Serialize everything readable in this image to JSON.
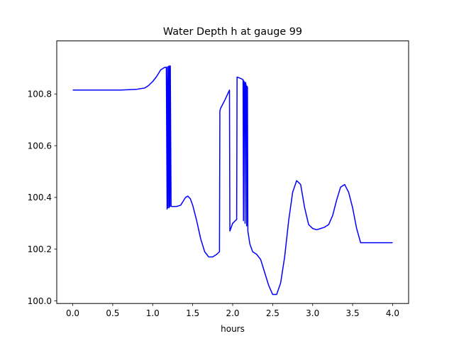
{
  "chart_data": {
    "type": "line",
    "title": "Water Depth h at gauge 99",
    "xlabel": "hours",
    "ylabel": "",
    "xlim": [
      -0.2,
      4.2
    ],
    "ylim": [
      99.99,
      101.005
    ],
    "xticks": [
      0.0,
      0.5,
      1.0,
      1.5,
      2.0,
      2.5,
      3.0,
      3.5,
      4.0
    ],
    "xtick_labels": [
      "0.0",
      "0.5",
      "1.0",
      "1.5",
      "2.0",
      "2.5",
      "3.0",
      "3.5",
      "4.0"
    ],
    "yticks": [
      100.0,
      100.2,
      100.4,
      100.6,
      100.8
    ],
    "ytick_labels": [
      "100.0",
      "100.2",
      "100.4",
      "100.6",
      "100.8"
    ],
    "grid": false,
    "color": "#0000ff",
    "series": [
      {
        "x": [
          0.0,
          0.2,
          0.4,
          0.6,
          0.8,
          0.9,
          0.95,
          1.0,
          1.05,
          1.1,
          1.15,
          1.17,
          1.18,
          1.185,
          1.19,
          1.2,
          1.205,
          1.21,
          1.215,
          1.22,
          1.23,
          1.3,
          1.35,
          1.38,
          1.41,
          1.44,
          1.47,
          1.5,
          1.55,
          1.6,
          1.65,
          1.7,
          1.75,
          1.8,
          1.835,
          1.84,
          1.85,
          1.9,
          1.96,
          1.965,
          2.0,
          2.05,
          2.055,
          2.06,
          2.1,
          2.13,
          2.135,
          2.14,
          2.15,
          2.155,
          2.16,
          2.17,
          2.175,
          2.18,
          2.185,
          2.19,
          2.2,
          2.21,
          2.215,
          2.25,
          2.3,
          2.35,
          2.4,
          2.45,
          2.5,
          2.55,
          2.6,
          2.65,
          2.7,
          2.75,
          2.8,
          2.85,
          2.9,
          2.95,
          3.0,
          3.05,
          3.1,
          3.15,
          3.2,
          3.25,
          3.3,
          3.35,
          3.4,
          3.45,
          3.5,
          3.55,
          3.6,
          3.65,
          3.7,
          3.75,
          3.8,
          3.85,
          3.9,
          3.95,
          4.0
        ],
        "y": [
          100.815,
          100.815,
          100.815,
          100.815,
          100.818,
          100.823,
          100.833,
          100.848,
          100.868,
          100.893,
          100.903,
          100.903,
          100.355,
          100.905,
          100.36,
          100.907,
          100.36,
          100.908,
          100.365,
          100.908,
          100.365,
          100.365,
          100.37,
          100.385,
          100.4,
          100.405,
          100.395,
          100.37,
          100.31,
          100.24,
          100.19,
          100.17,
          100.17,
          100.18,
          100.19,
          100.735,
          100.745,
          100.775,
          100.815,
          100.27,
          100.3,
          100.315,
          100.865,
          100.865,
          100.86,
          100.855,
          100.31,
          100.85,
          100.84,
          100.3,
          100.845,
          100.83,
          100.29,
          100.83,
          100.825,
          100.27,
          100.25,
          100.23,
          100.22,
          100.19,
          100.18,
          100.16,
          100.11,
          100.06,
          100.025,
          100.025,
          100.07,
          100.17,
          100.31,
          100.42,
          100.465,
          100.45,
          100.36,
          100.295,
          100.28,
          100.275,
          100.28,
          100.285,
          100.295,
          100.33,
          100.39,
          100.44,
          100.45,
          100.42,
          100.36,
          100.28,
          100.225,
          100.225,
          100.225,
          100.225,
          100.225,
          100.225,
          100.225,
          100.225,
          100.225
        ]
      }
    ]
  }
}
